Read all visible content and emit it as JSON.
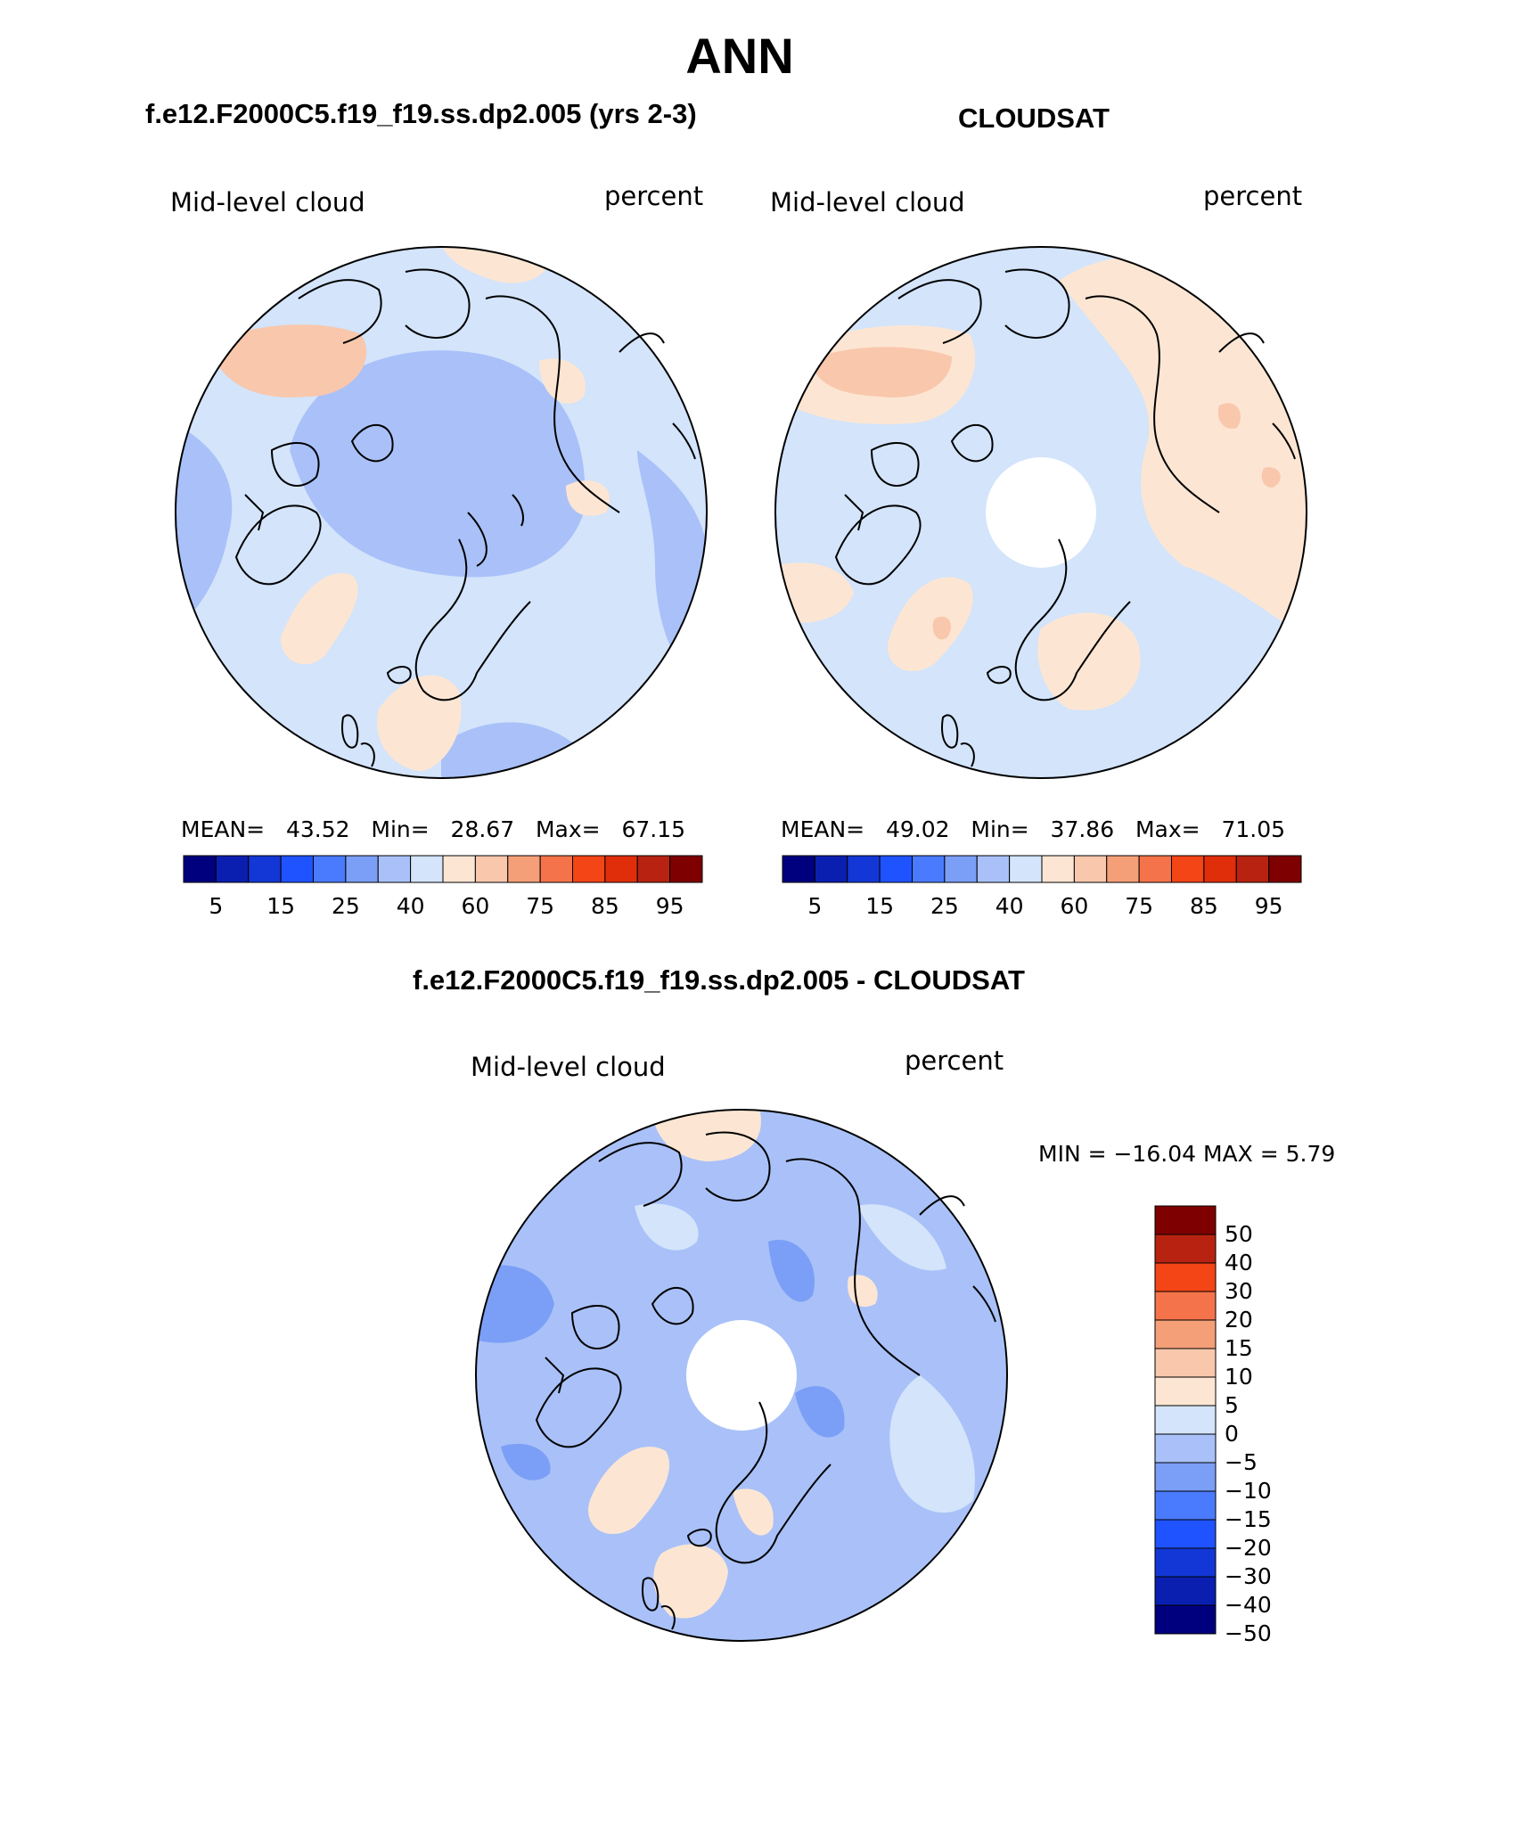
{
  "main_title": "ANN",
  "panels": [
    {
      "header": "f.e12.F2000C5.f19_f19.ss.dp2.005 (yrs 2-3)",
      "variable": "Mid-level cloud",
      "units": "percent",
      "stats": {
        "mean_label": "MEAN=",
        "mean": "43.52",
        "min_label": "Min=",
        "min": "28.67",
        "max_label": "Max=",
        "max": "67.15"
      }
    },
    {
      "header": "CLOUDSAT",
      "variable": "Mid-level cloud",
      "units": "percent",
      "stats": {
        "mean_label": "MEAN=",
        "mean": "49.02",
        "min_label": "Min=",
        "min": "37.86",
        "max_label": "Max=",
        "max": "71.05"
      }
    },
    {
      "header": "f.e12.F2000C5.f19_f19.ss.dp2.005 - CLOUDSAT",
      "variable": "Mid-level cloud",
      "units": "percent",
      "stats": {
        "minmax_label": "MIN = −16.04 MAX =    5.79"
      }
    }
  ],
  "abs_colorbar": {
    "colors": [
      "#00007f",
      "#0a1fb0",
      "#1337d6",
      "#1f53ff",
      "#4a7bff",
      "#7b9ff6",
      "#a9c1f8",
      "#d3e4fb",
      "#fce6d3",
      "#f9c7ac",
      "#f59f78",
      "#f5734a",
      "#f44516",
      "#e02e0a",
      "#b72310",
      "#7f0000"
    ],
    "ticks": [
      "5",
      "15",
      "25",
      "40",
      "60",
      "75",
      "85",
      "95"
    ]
  },
  "diff_colorbar": {
    "colors": [
      "#00007f",
      "#0a1fb0",
      "#1337d6",
      "#1f53ff",
      "#4a7bff",
      "#7b9ff6",
      "#a9c1f8",
      "#d3e4fb",
      "#fce6d3",
      "#f9c7ac",
      "#f59f78",
      "#f5734a",
      "#f44516",
      "#b72310",
      "#7f0000"
    ],
    "ticks": [
      "50",
      "40",
      "30",
      "20",
      "15",
      "10",
      "5",
      "0",
      "−5",
      "−10",
      "−15",
      "−20",
      "−30",
      "−40",
      "−50"
    ]
  },
  "colors": {
    "light_blue": "#d3e4fb",
    "mid_blue": "#a9c1f8",
    "blue": "#7b9ff6",
    "peach": "#fce6d3",
    "salmon": "#f9c7ac"
  }
}
